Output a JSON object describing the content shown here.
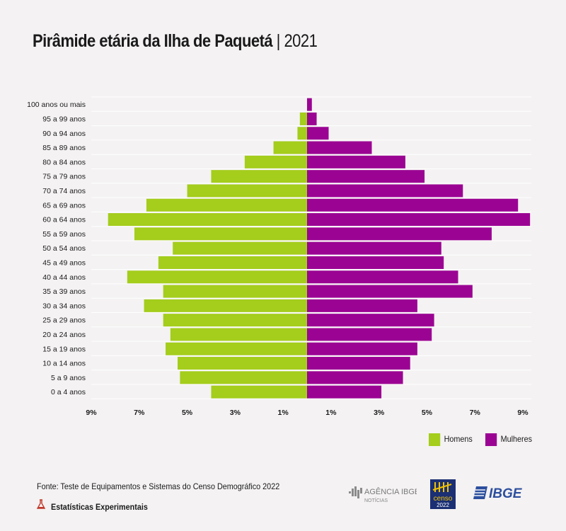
{
  "title": {
    "main": "Pirâmide etária da Ilha de Paquetá",
    "sep": "|",
    "year": "2021"
  },
  "colors": {
    "men": "#a4cd1c",
    "women": "#9b0493",
    "grid": "#ffffff",
    "text": "#1a1a1a"
  },
  "chart_data": {
    "type": "bar",
    "orientation": "horizontal-population-pyramid",
    "categories": [
      "100 anos ou mais",
      "95 a 99 anos",
      "90 a 94 anos",
      "85 a 89 anos",
      "80 a 84 anos",
      "75 a 79 anos",
      "70 a 74 anos",
      "65 a 69 anos",
      "60 a 64 anos",
      "55 a 59 anos",
      "50 a 54 anos",
      "45 a 49 anos",
      "40 a 44 anos",
      "35 a 39 anos",
      "30 a 34 anos",
      "25 a 29 anos",
      "20 a 24 anos",
      "15 a 19 anos",
      "10 a 14 anos",
      "5 a 9 anos",
      "0 a 4 anos"
    ],
    "series": [
      {
        "name": "Homens",
        "values": [
          0,
          0.3,
          0.4,
          1.4,
          2.6,
          4.0,
          5.0,
          6.7,
          8.3,
          7.2,
          5.6,
          6.2,
          7.5,
          6.0,
          6.8,
          6.0,
          5.7,
          5.9,
          5.4,
          5.3,
          4.0
        ]
      },
      {
        "name": "Mulheres",
        "values": [
          0.2,
          0.4,
          0.9,
          2.7,
          4.1,
          4.9,
          6.5,
          8.8,
          9.3,
          7.7,
          5.6,
          5.7,
          6.3,
          6.9,
          4.6,
          5.3,
          5.2,
          4.6,
          4.3,
          4.0,
          3.1
        ]
      }
    ],
    "xlim": [
      -9,
      9
    ],
    "xticks": [
      {
        "v": -9,
        "label": "9%"
      },
      {
        "v": -7,
        "label": "7%"
      },
      {
        "v": -5,
        "label": "5%"
      },
      {
        "v": -3,
        "label": "3%"
      },
      {
        "v": -1,
        "label": "1%"
      },
      {
        "v": 1,
        "label": "1%"
      },
      {
        "v": 3,
        "label": "3%"
      },
      {
        "v": 5,
        "label": "5%"
      },
      {
        "v": 7,
        "label": "7%"
      },
      {
        "v": 9,
        "label": "9%"
      }
    ],
    "grid": true,
    "legend_position": "bottom-right"
  },
  "legend": {
    "men": "Homens",
    "women": "Mulheres"
  },
  "footer": {
    "source": "Fonte: Teste de Equipamentos e Sistemas do Censo Demográfico 2022",
    "experimental": "Estatísticas Experimentais",
    "agencia_label": "AGÊNCIA IBGE",
    "agencia_sub": "NOTÍCIAS",
    "censo_label": "censo",
    "censo_year": "2022",
    "ibge_label": "IBGE"
  }
}
